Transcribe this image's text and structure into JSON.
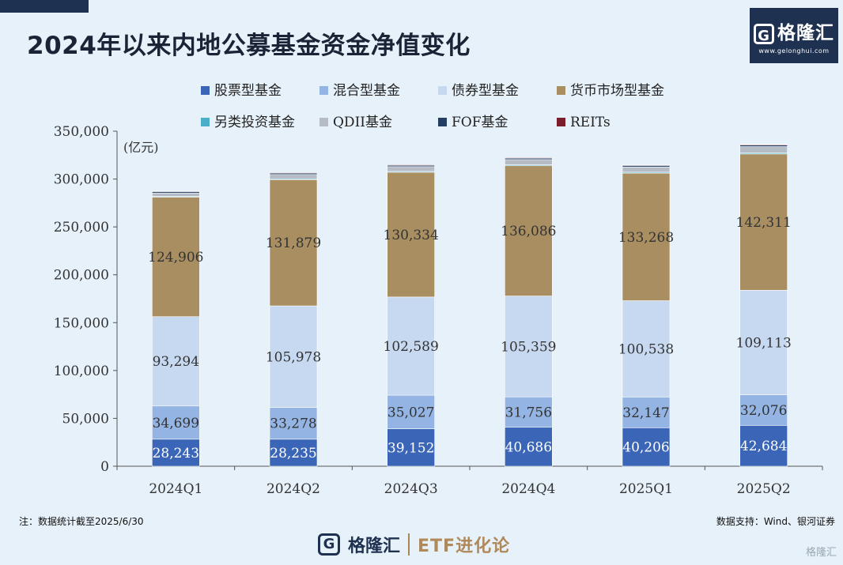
{
  "header": {
    "title": "2024年以来内地公募基金资金净值变化"
  },
  "logo": {
    "name": "格隆汇",
    "url": "www.gelonghui.com"
  },
  "notes": {
    "left": "注：数据统计截至2025/6/30",
    "right": "数据支持：Wind、银河证券"
  },
  "footer": {
    "brand": "格隆汇",
    "column": "ETF进化论"
  },
  "corner": {
    "mark": "格隆汇"
  },
  "chart_data": {
    "type": "bar",
    "stacked": true,
    "title": "2024年以来内地公募基金资金净值变化",
    "ylabel": "(亿元)",
    "xlabel": "",
    "ylim": [
      0,
      350000
    ],
    "yticks": [
      0,
      50000,
      100000,
      150000,
      200000,
      250000,
      300000,
      350000
    ],
    "ytick_labels": [
      "0",
      "50,000",
      "100,000",
      "150,000",
      "200,000",
      "250,000",
      "300,000",
      "350,000"
    ],
    "legend_position": "top",
    "categories": [
      "2024Q1",
      "2024Q2",
      "2024Q3",
      "2024Q4",
      "2025Q1",
      "2025Q2"
    ],
    "series": [
      {
        "name": "股票型基金",
        "color": "#3b66b7",
        "values": [
          28243,
          28235,
          39152,
          40686,
          40206,
          42684
        ],
        "labels": [
          "28,243",
          "28,235",
          "39,152",
          "40,686",
          "40,206",
          "42,684"
        ],
        "label_color": "#ffffff"
      },
      {
        "name": "混合型基金",
        "color": "#94b4e3",
        "values": [
          34699,
          33278,
          35027,
          31756,
          32147,
          32076
        ],
        "labels": [
          "34,699",
          "33,278",
          "35,027",
          "31,756",
          "32,147",
          "32,076"
        ],
        "label_color": "#333333"
      },
      {
        "name": "债券型基金",
        "color": "#c7d9f1",
        "values": [
          93294,
          105978,
          102589,
          105359,
          100538,
          109113
        ],
        "labels": [
          "93,294",
          "105,978",
          "102,589",
          "105,359",
          "100,538",
          "109,113"
        ],
        "label_color": "#333333"
      },
      {
        "name": "货币市场型基金",
        "color": "#a88e61",
        "values": [
          124906,
          131879,
          130334,
          136086,
          133268,
          142311
        ],
        "labels": [
          "124,906",
          "131,879",
          "130,334",
          "136,086",
          "133,268",
          "142,311"
        ],
        "label_color": "#333333"
      },
      {
        "name": "另类投资基金",
        "color": "#4aaec8",
        "values": [
          800,
          900,
          900,
          1000,
          1000,
          1200
        ],
        "labels": [],
        "label_color": "#333333"
      },
      {
        "name": "QDII基金",
        "color": "#b6bcc6",
        "values": [
          3500,
          4500,
          5000,
          5500,
          5500,
          6500
        ],
        "labels": [],
        "label_color": "#333333"
      },
      {
        "name": "FOF基金",
        "color": "#243e63",
        "values": [
          1500,
          1500,
          1400,
          1400,
          1500,
          1600
        ],
        "labels": [],
        "label_color": "#333333"
      },
      {
        "name": "REITs",
        "color": "#7a1e2c",
        "values": [
          500,
          600,
          600,
          600,
          600,
          700
        ],
        "labels": [],
        "label_color": "#333333"
      }
    ]
  }
}
